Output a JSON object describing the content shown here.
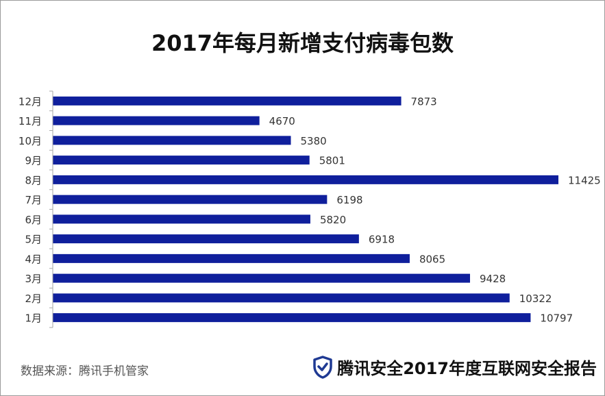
{
  "title": "2017年每月新增支付病毒包数",
  "source": "数据来源：腾讯手机管家",
  "brand": {
    "text": "腾讯安全2017年度互联网安全报告",
    "icon": "shield-check-icon",
    "icon_color": "#1f3a93"
  },
  "colors": {
    "bar": "#0f1f9c",
    "axis": "#a6a6a6",
    "label": "#333333"
  },
  "chart_data": {
    "type": "bar",
    "orientation": "horizontal",
    "title": "2017年每月新增支付病毒包数",
    "categories": [
      "12月",
      "11月",
      "10月",
      "9月",
      "8月",
      "7月",
      "6月",
      "5月",
      "4月",
      "3月",
      "2月",
      "1月"
    ],
    "values": [
      7873,
      4670,
      5380,
      5801,
      11425,
      6198,
      5820,
      6918,
      8065,
      9428,
      10322,
      10797
    ],
    "xlim": [
      0,
      11425
    ],
    "grid": false,
    "legend": "none"
  }
}
